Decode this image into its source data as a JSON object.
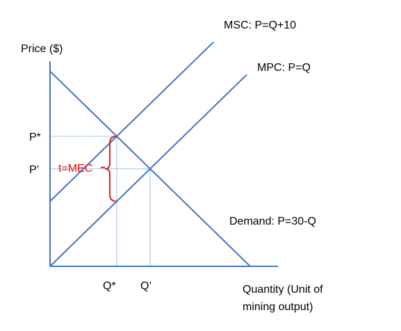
{
  "chart_data": {
    "type": "line",
    "ylabel": "Price ($)",
    "xlabel_lines": [
      "Quantity (Unit of",
      "mining output)"
    ],
    "xlim": [
      0,
      30
    ],
    "ylim": [
      0,
      30
    ],
    "series": [
      {
        "name": "MSC: P=Q+10",
        "x": [
          0,
          24.5
        ],
        "y": [
          10,
          34.5
        ]
      },
      {
        "name": "MPC: P=Q",
        "x": [
          0,
          29.5
        ],
        "y": [
          0,
          29.5
        ]
      },
      {
        "name": "Demand: P=30-Q",
        "x": [
          0,
          30
        ],
        "y": [
          30,
          0
        ]
      }
    ],
    "reference_points": [
      {
        "name": "social optimum",
        "x": 10,
        "y": 20,
        "x_label": "Q*",
        "y_label": "P*"
      },
      {
        "name": "market equilibrium",
        "x": 15,
        "y": 15,
        "x_label": "Q’",
        "y_label": "P’"
      }
    ],
    "annotation": {
      "text": "t=MEC",
      "color": "#ff0000",
      "at_x": 10,
      "from_y": 10,
      "to_y": 20
    },
    "colors": {
      "lines": "#4472c4",
      "axis": "#4472c4",
      "guides": "#9dc3e6",
      "brace": "#e02020"
    },
    "grid": false
  }
}
